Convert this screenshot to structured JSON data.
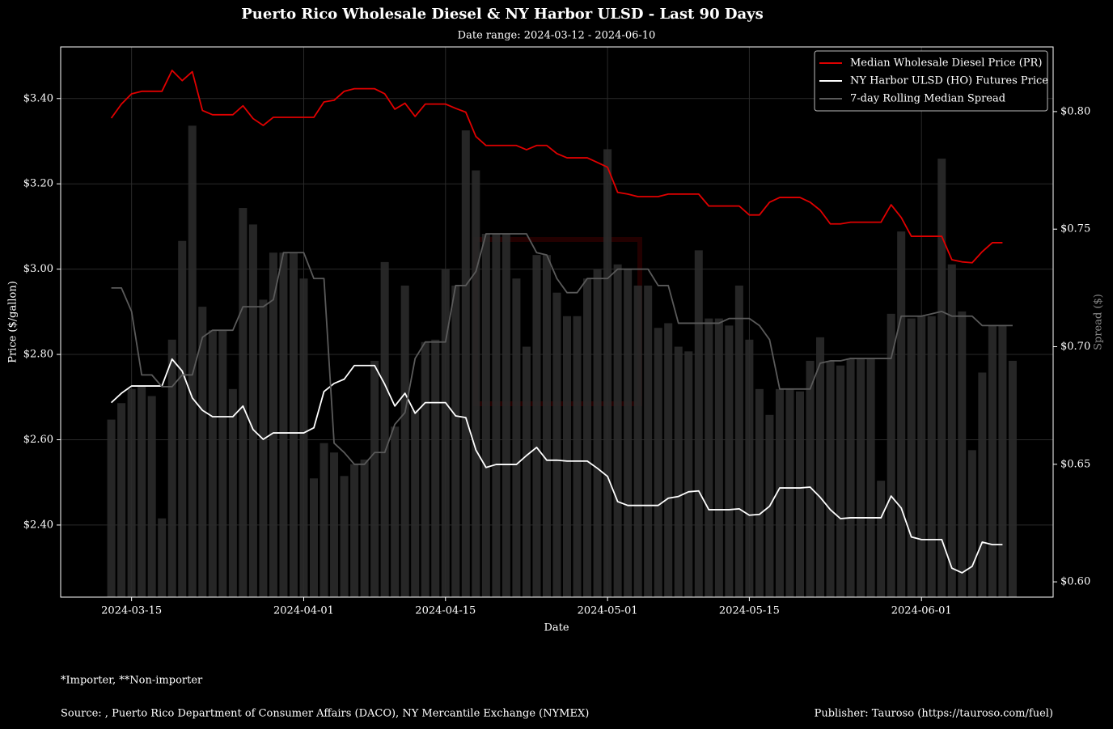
{
  "chart_data": {
    "type": "line",
    "title": "Puerto Rico Wholesale Diesel & NY Harbor ULSD - Last 90 Days",
    "subtitle": "Date range: 2024-03-12 - 2024-06-10",
    "x_label": "Date",
    "y_label": "Price ($/gallon)",
    "y2_label": "Spread ($)",
    "footnote": "*Importer, **Non-importer",
    "source": "Source: , Puerto Rico Department of Consumer Affairs (DACO), NY Mercantile Exchange (NYMEX)",
    "publisher": "Publisher: Tauroso (https://tauroso.com/fuel)",
    "grid": true,
    "legend": "upper right",
    "x": [
      "2024-03-13",
      "2024-03-14",
      "2024-03-15",
      "2024-03-16",
      "2024-03-17",
      "2024-03-18",
      "2024-03-19",
      "2024-03-20",
      "2024-03-21",
      "2024-03-22",
      "2024-03-23",
      "2024-03-24",
      "2024-03-25",
      "2024-03-26",
      "2024-03-27",
      "2024-03-28",
      "2024-03-29",
      "2024-03-30",
      "2024-03-31",
      "2024-04-01",
      "2024-04-02",
      "2024-04-03",
      "2024-04-04",
      "2024-04-05",
      "2024-04-06",
      "2024-04-07",
      "2024-04-08",
      "2024-04-09",
      "2024-04-10",
      "2024-04-11",
      "2024-04-12",
      "2024-04-13",
      "2024-04-14",
      "2024-04-15",
      "2024-04-16",
      "2024-04-17",
      "2024-04-18",
      "2024-04-19",
      "2024-04-20",
      "2024-04-21",
      "2024-04-22",
      "2024-04-23",
      "2024-04-24",
      "2024-04-25",
      "2024-04-26",
      "2024-04-27",
      "2024-04-28",
      "2024-04-29",
      "2024-04-30",
      "2024-05-01",
      "2024-05-02",
      "2024-05-03",
      "2024-05-04",
      "2024-05-05",
      "2024-05-06",
      "2024-05-07",
      "2024-05-08",
      "2024-05-09",
      "2024-05-10",
      "2024-05-11",
      "2024-05-12",
      "2024-05-13",
      "2024-05-14",
      "2024-05-15",
      "2024-05-16",
      "2024-05-17",
      "2024-05-18",
      "2024-05-19",
      "2024-05-20",
      "2024-05-21",
      "2024-05-22",
      "2024-05-23",
      "2024-05-24",
      "2024-05-25",
      "2024-05-26",
      "2024-05-27",
      "2024-05-28",
      "2024-05-29",
      "2024-05-30",
      "2024-05-31",
      "2024-06-01",
      "2024-06-02",
      "2024-06-03",
      "2024-06-04",
      "2024-06-05",
      "2024-06-06",
      "2024-06-07",
      "2024-06-08",
      "2024-06-09",
      "2024-06-10"
    ],
    "xlim": [
      "2024-03-08",
      "2024-06-14"
    ],
    "xticks": [
      "2024-03-15",
      "2024-04-01",
      "2024-04-15",
      "2024-05-01",
      "2024-05-15",
      "2024-06-01"
    ],
    "ylim": [
      2.231,
      3.521
    ],
    "yticks": [
      {
        "value": 2.4,
        "label": "$2.40"
      },
      {
        "value": 2.6,
        "label": "$2.60"
      },
      {
        "value": 2.8,
        "label": "$2.80"
      },
      {
        "value": 3.0,
        "label": "$3.00"
      },
      {
        "value": 3.2,
        "label": "$3.20"
      },
      {
        "value": 3.4,
        "label": "$3.40"
      }
    ],
    "y2lim": [
      0.5935,
      0.8275
    ],
    "y2ticks": [
      {
        "value": 0.6,
        "label": "$0.60"
      },
      {
        "value": 0.65,
        "label": "$0.65"
      },
      {
        "value": 0.7,
        "label": "$0.70"
      },
      {
        "value": 0.75,
        "label": "$0.75"
      },
      {
        "value": 0.8,
        "label": "$0.80"
      }
    ],
    "series": [
      {
        "name": "Median Wholesale Diesel Price (PR)",
        "color": "#e00000",
        "values": [
          3.354,
          3.387,
          3.411,
          3.417,
          3.417,
          3.417,
          3.466,
          3.442,
          3.463,
          3.372,
          3.362,
          3.362,
          3.362,
          3.383,
          3.353,
          3.337,
          3.356,
          3.356,
          3.356,
          3.356,
          3.356,
          3.392,
          3.396,
          3.417,
          3.423,
          3.423,
          3.423,
          3.411,
          3.375,
          3.389,
          3.358,
          3.387,
          3.387,
          3.387,
          3.377,
          3.368,
          3.311,
          3.29,
          3.29,
          3.29,
          3.29,
          3.28,
          3.29,
          3.29,
          3.271,
          3.261,
          3.261,
          3.261,
          3.25,
          3.239,
          3.18,
          3.176,
          3.17,
          3.17,
          3.17,
          3.176,
          3.176,
          3.176,
          3.176,
          3.148,
          3.148,
          3.148,
          3.148,
          3.127,
          3.127,
          3.157,
          3.168,
          3.168,
          3.168,
          3.157,
          3.138,
          3.106,
          3.106,
          3.11,
          3.11,
          3.11,
          3.11,
          3.151,
          3.121,
          3.077,
          3.077,
          3.077,
          3.077,
          3.022,
          3.017,
          3.015,
          3.041,
          3.062,
          3.062,
          null
        ]
      },
      {
        "name": "NY Harbor ULSD (HO) Futures Price",
        "color": "#ffffff",
        "values": [
          2.687,
          2.709,
          2.726,
          2.726,
          2.726,
          2.726,
          2.789,
          2.761,
          2.698,
          2.669,
          2.654,
          2.654,
          2.654,
          2.679,
          2.624,
          2.601,
          2.616,
          2.616,
          2.616,
          2.616,
          2.628,
          2.713,
          2.732,
          2.742,
          2.774,
          2.774,
          2.774,
          2.73,
          2.679,
          2.709,
          2.662,
          2.687,
          2.687,
          2.687,
          2.656,
          2.652,
          2.576,
          2.535,
          2.542,
          2.542,
          2.542,
          2.563,
          2.582,
          2.552,
          2.552,
          2.55,
          2.55,
          2.55,
          2.533,
          2.514,
          2.455,
          2.446,
          2.446,
          2.446,
          2.446,
          2.463,
          2.467,
          2.478,
          2.48,
          2.436,
          2.436,
          2.436,
          2.438,
          2.423,
          2.425,
          2.444,
          2.487,
          2.487,
          2.487,
          2.489,
          2.465,
          2.436,
          2.415,
          2.417,
          2.417,
          2.417,
          2.417,
          2.468,
          2.44,
          2.372,
          2.366,
          2.366,
          2.366,
          2.299,
          2.288,
          2.303,
          2.36,
          2.354,
          2.354,
          null
        ]
      },
      {
        "name": "7-day Rolling Median Spread",
        "color": "#5a5a5a",
        "axis": "y2",
        "values": [
          0.725,
          0.725,
          0.715,
          0.688,
          0.688,
          0.683,
          0.683,
          0.688,
          0.688,
          0.704,
          0.707,
          0.707,
          0.707,
          0.717,
          0.717,
          0.717,
          0.72,
          0.74,
          0.74,
          0.74,
          0.729,
          0.729,
          0.659,
          0.655,
          0.65,
          0.65,
          0.655,
          0.655,
          0.667,
          0.672,
          0.695,
          0.702,
          0.702,
          0.702,
          0.726,
          0.726,
          0.732,
          0.748,
          0.748,
          0.748,
          0.748,
          0.748,
          0.74,
          0.739,
          0.729,
          0.723,
          0.723,
          0.729,
          0.729,
          0.729,
          0.733,
          0.733,
          0.733,
          0.733,
          0.726,
          0.726,
          0.71,
          0.71,
          0.71,
          0.71,
          0.71,
          0.712,
          0.712,
          0.712,
          0.709,
          0.703,
          0.682,
          0.682,
          0.682,
          0.682,
          0.693,
          0.694,
          0.694,
          0.695,
          0.695,
          0.695,
          0.695,
          0.695,
          0.713,
          0.713,
          0.713,
          0.714,
          0.715,
          0.713,
          0.713,
          0.713,
          0.709,
          0.709,
          0.709,
          0.709
        ]
      },
      {
        "type": "bar",
        "color": "#2a2a2a",
        "axis": "y2",
        "values": [
          0.669,
          0.676,
          0.682,
          0.683,
          0.679,
          0.627,
          0.703,
          0.745,
          0.794,
          0.717,
          0.707,
          0.707,
          0.682,
          0.759,
          0.752,
          0.72,
          0.74,
          0.74,
          0.74,
          0.729,
          0.644,
          0.659,
          0.655,
          0.645,
          0.65,
          0.652,
          0.694,
          0.736,
          0.666,
          0.726,
          0.673,
          0.702,
          0.703,
          0.733,
          0.726,
          0.792,
          0.775,
          0.748,
          0.748,
          0.748,
          0.729,
          0.7,
          0.739,
          0.739,
          0.723,
          0.713,
          0.713,
          0.729,
          0.733,
          0.784,
          0.735,
          0.733,
          0.726,
          0.726,
          0.708,
          0.71,
          0.7,
          0.698,
          0.741,
          0.712,
          0.712,
          0.709,
          0.726,
          0.703,
          0.682,
          0.671,
          0.682,
          0.682,
          0.681,
          0.694,
          0.704,
          0.694,
          0.692,
          0.695,
          0.695,
          0.695,
          0.643,
          0.714,
          0.749,
          0.712,
          0.713,
          0.713,
          0.78,
          0.735,
          0.715,
          0.656,
          0.689,
          0.709,
          0.709,
          0.694
        ]
      }
    ]
  }
}
